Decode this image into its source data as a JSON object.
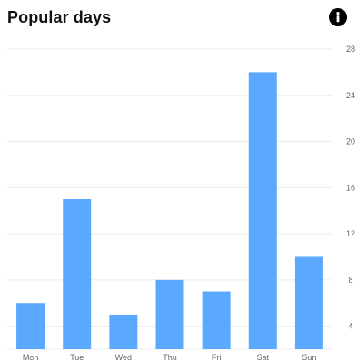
{
  "header": {
    "title": "Popular days",
    "info_icon": "info-icon"
  },
  "colors": {
    "bar": "#5aa9ff",
    "grid": "#ececec",
    "tick_text": "#666666",
    "title": "#111111"
  },
  "chart_data": {
    "type": "bar",
    "title": "Popular days",
    "xlabel": "",
    "ylabel": "",
    "categories": [
      "Mon",
      "Tue",
      "Wed",
      "Thu",
      "Fri",
      "Sat",
      "Sun"
    ],
    "values": [
      6,
      15,
      5,
      8,
      7,
      26,
      10
    ],
    "ylim": [
      2,
      28
    ],
    "yticks": [
      4,
      8,
      12,
      16,
      20,
      24,
      28
    ],
    "y_axis_position": "right",
    "grid": true,
    "legend": "none"
  }
}
